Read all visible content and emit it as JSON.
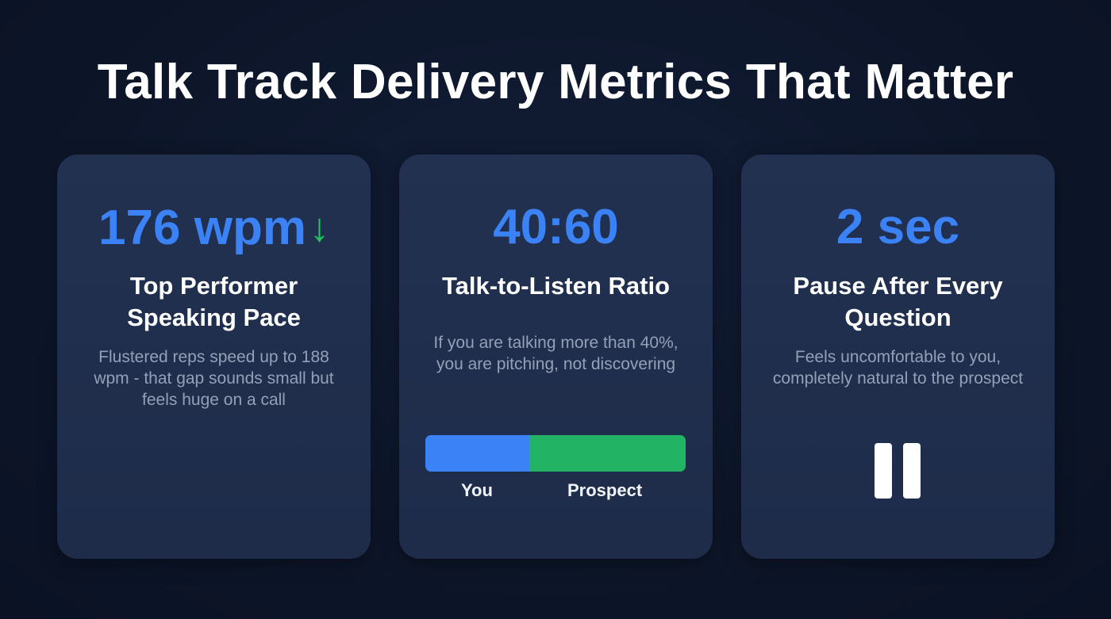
{
  "title": "Talk Track Delivery Metrics That Matter",
  "colors": {
    "background": "#0d1629",
    "card": "#1f2d4a",
    "accent_blue": "#3b82f6",
    "accent_green": "#22c55e",
    "text_muted": "#94a0b8"
  },
  "cards": [
    {
      "metric": "176 wpm",
      "indicator_icon": "arrow-down-icon",
      "indicator_glyph": "↓",
      "label": "Top Performer Speaking Pace",
      "description": "Flustered reps speed up to 188 wpm - that gap sounds small but feels huge on a call"
    },
    {
      "metric": "40:60",
      "label": "Talk-to-Listen Ratio",
      "description": "If you are talking more than 40%, you are pitching, not discovering",
      "ratio_bar": {
        "you_label": "You",
        "you_percent": 40,
        "prospect_label": "Prospect",
        "prospect_percent": 60
      }
    },
    {
      "metric": "2 sec",
      "label": "Pause After Every Question",
      "description": "Feels uncomfortable to you, completely natural to the prospect",
      "icon": "pause-icon"
    }
  ]
}
